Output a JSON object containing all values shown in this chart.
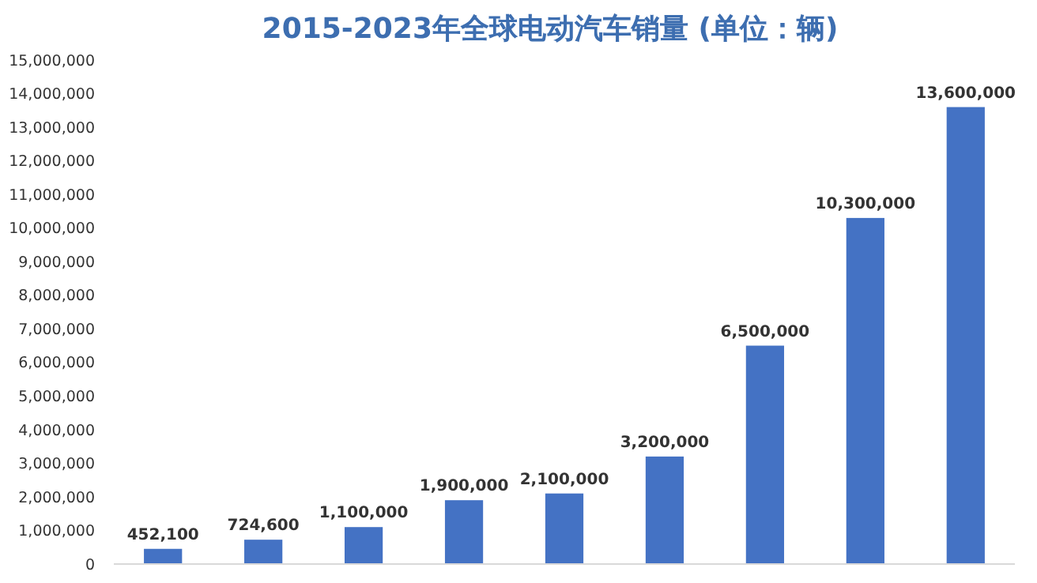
{
  "chart_data": {
    "type": "bar",
    "title": "2015-2023年全球电动汽车销量 (单位：辆)",
    "categories": [
      null,
      null,
      null,
      null,
      null,
      null,
      null,
      null,
      null
    ],
    "values": [
      452100,
      724600,
      1100000,
      1900000,
      2100000,
      3200000,
      6500000,
      10300000,
      13600000
    ],
    "value_labels": [
      "452,100",
      "724,600",
      "1,100,000",
      "1,900,000",
      "2,100,000",
      "3,200,000",
      "6,500,000",
      "10,300,000",
      "13,600,000"
    ],
    "color": "#4472c4",
    "ylim": [
      0,
      15000000
    ],
    "yticks": [
      {
        "value": 0,
        "label": "0"
      },
      {
        "value": 1000000,
        "label": "1,000,000"
      },
      {
        "value": 2000000,
        "label": "2,000,000"
      },
      {
        "value": 3000000,
        "label": "3,000,000"
      },
      {
        "value": 4000000,
        "label": "4,000,000"
      },
      {
        "value": 5000000,
        "label": "5,000,000"
      },
      {
        "value": 6000000,
        "label": "6,000,000"
      },
      {
        "value": 7000000,
        "label": "7,000,000"
      },
      {
        "value": 8000000,
        "label": "8,000,000"
      },
      {
        "value": 9000000,
        "label": "9,000,000"
      },
      {
        "value": 10000000,
        "label": "10,000,000"
      },
      {
        "value": 11000000,
        "label": "11,000,000"
      },
      {
        "value": 12000000,
        "label": "12,000,000"
      },
      {
        "value": 13000000,
        "label": "13,000,000"
      },
      {
        "value": 14000000,
        "label": "14,000,000"
      },
      {
        "value": 15000000,
        "label": "15,000,000"
      }
    ],
    "grid": false
  }
}
